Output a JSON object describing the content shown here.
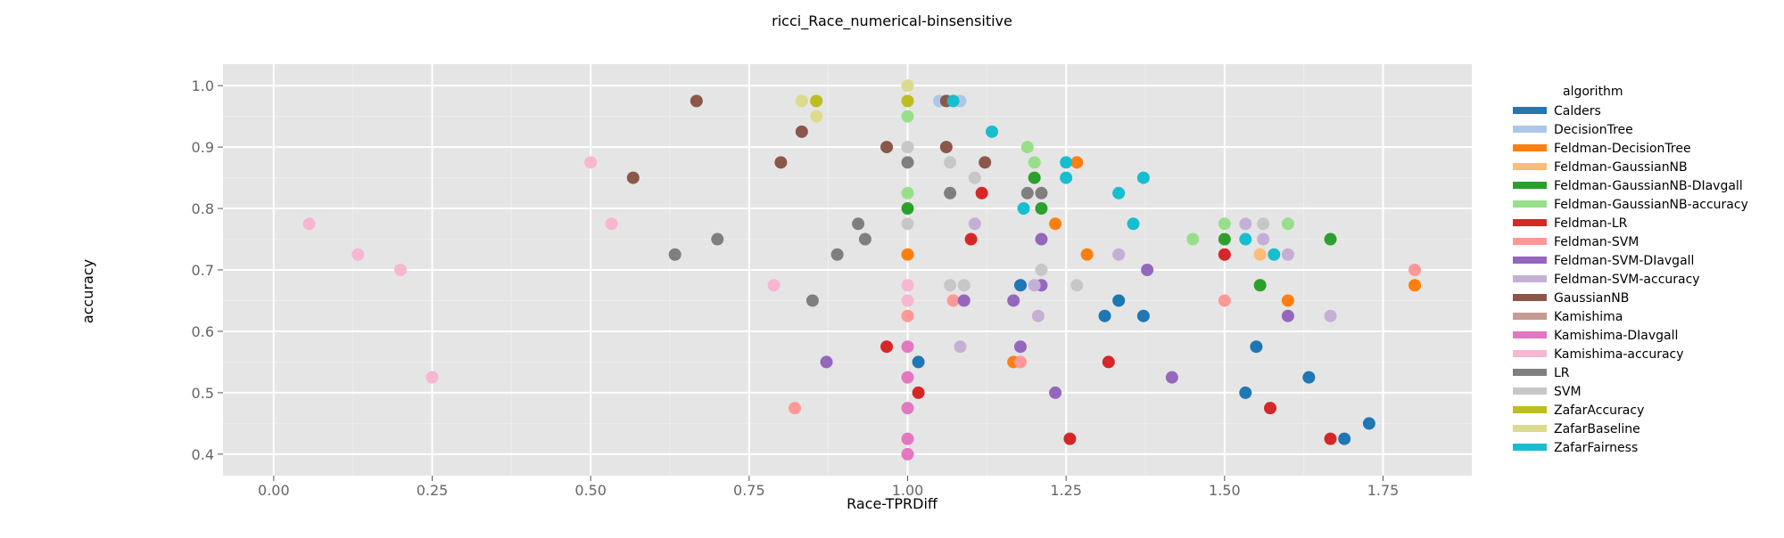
{
  "chart_data": {
    "type": "scatter",
    "title": "ricci_Race_numerical-binsensitive",
    "xlabel": "Race-TPRDiff",
    "ylabel": "accuracy",
    "xlim": [
      -0.08,
      1.89
    ],
    "ylim": [
      0.365,
      1.035
    ],
    "x_ticks": [
      0.0,
      0.25,
      0.5,
      0.75,
      1.0,
      1.25,
      1.5,
      1.75
    ],
    "x_tick_labels": [
      "0.00",
      "0.25",
      "0.50",
      "0.75",
      "1.00",
      "1.25",
      "1.50",
      "1.75"
    ],
    "y_ticks": [
      0.4,
      0.5,
      0.6,
      0.7,
      0.8,
      0.9,
      1.0
    ],
    "y_tick_labels": [
      "0.4",
      "0.5",
      "0.6",
      "0.7",
      "0.8",
      "0.9",
      "1.0"
    ],
    "grid": true,
    "legend_title": "algorithm",
    "legend_position": "right",
    "series": [
      {
        "name": "Calders",
        "color": "#1f77b4",
        "points": [
          [
            1.017,
            0.55
          ],
          [
            1.178,
            0.675
          ],
          [
            1.311,
            0.625
          ],
          [
            1.333,
            0.65
          ],
          [
            1.372,
            0.625
          ],
          [
            1.55,
            0.575
          ],
          [
            1.533,
            0.5
          ],
          [
            1.633,
            0.525
          ],
          [
            1.689,
            0.425
          ],
          [
            1.728,
            0.45
          ]
        ]
      },
      {
        "name": "DecisionTree",
        "color": "#aec7e8",
        "points": [
          [
            1.05,
            0.975
          ],
          [
            1.083,
            0.975
          ]
        ]
      },
      {
        "name": "Feldman-DecisionTree",
        "color": "#ff7f0e",
        "points": [
          [
            1.0,
            0.725
          ],
          [
            1.267,
            0.875
          ],
          [
            1.233,
            0.775
          ],
          [
            1.283,
            0.725
          ],
          [
            1.167,
            0.55
          ],
          [
            1.6,
            0.65
          ],
          [
            1.8,
            0.675
          ]
        ]
      },
      {
        "name": "Feldman-GaussianNB",
        "color": "#ffbb78",
        "points": [
          [
            1.556,
            0.725
          ]
        ]
      },
      {
        "name": "Feldman-GaussianNB-DIavgall",
        "color": "#2ca02c",
        "points": [
          [
            1.0,
            0.8
          ],
          [
            1.2,
            0.85
          ],
          [
            1.211,
            0.8
          ],
          [
            1.5,
            0.75
          ],
          [
            1.556,
            0.675
          ],
          [
            1.667,
            0.75
          ]
        ]
      },
      {
        "name": "Feldman-GaussianNB-accuracy",
        "color": "#98df8a",
        "points": [
          [
            1.0,
            0.95
          ],
          [
            1.0,
            0.825
          ],
          [
            1.189,
            0.9
          ],
          [
            1.2,
            0.875
          ],
          [
            1.45,
            0.75
          ],
          [
            1.5,
            0.775
          ],
          [
            1.6,
            0.775
          ]
        ]
      },
      {
        "name": "Feldman-LR",
        "color": "#d62728",
        "points": [
          [
            0.967,
            0.575
          ],
          [
            1.017,
            0.5
          ],
          [
            1.1,
            0.75
          ],
          [
            1.117,
            0.825
          ],
          [
            1.256,
            0.425
          ],
          [
            1.317,
            0.55
          ],
          [
            1.5,
            0.725
          ],
          [
            1.572,
            0.475
          ],
          [
            1.667,
            0.425
          ]
        ]
      },
      {
        "name": "Feldman-SVM",
        "color": "#ff9896",
        "points": [
          [
            0.822,
            0.475
          ],
          [
            1.0,
            0.625
          ],
          [
            1.072,
            0.65
          ],
          [
            1.178,
            0.55
          ],
          [
            1.5,
            0.65
          ],
          [
            1.8,
            0.7
          ]
        ]
      },
      {
        "name": "Feldman-SVM-DIavgall",
        "color": "#9467bd",
        "points": [
          [
            0.872,
            0.55
          ],
          [
            1.089,
            0.65
          ],
          [
            1.167,
            0.65
          ],
          [
            1.178,
            0.575
          ],
          [
            1.211,
            0.75
          ],
          [
            1.211,
            0.675
          ],
          [
            1.233,
            0.5
          ],
          [
            1.378,
            0.7
          ],
          [
            1.417,
            0.525
          ],
          [
            1.6,
            0.625
          ]
        ]
      },
      {
        "name": "Feldman-SVM-accuracy",
        "color": "#c5b0d5",
        "points": [
          [
            1.083,
            0.575
          ],
          [
            1.106,
            0.775
          ],
          [
            1.2,
            0.675
          ],
          [
            1.206,
            0.625
          ],
          [
            1.333,
            0.725
          ],
          [
            1.533,
            0.775
          ],
          [
            1.561,
            0.75
          ],
          [
            1.6,
            0.725
          ],
          [
            1.667,
            0.625
          ]
        ]
      },
      {
        "name": "GaussianNB",
        "color": "#8c564b",
        "points": [
          [
            0.567,
            0.85
          ],
          [
            0.667,
            0.975
          ],
          [
            0.8,
            0.875
          ],
          [
            0.833,
            0.925
          ],
          [
            0.967,
            0.9
          ],
          [
            1.061,
            0.975
          ],
          [
            1.061,
            0.9
          ],
          [
            1.122,
            0.875
          ]
        ]
      },
      {
        "name": "Kamishima",
        "color": "#c49c94",
        "points": []
      },
      {
        "name": "Kamishima-DIavgall",
        "color": "#e377c2",
        "points": [
          [
            1.0,
            0.575
          ],
          [
            1.0,
            0.525
          ],
          [
            1.0,
            0.475
          ],
          [
            1.0,
            0.425
          ],
          [
            1.0,
            0.4
          ]
        ]
      },
      {
        "name": "Kamishima-accuracy",
        "color": "#f7b6d2",
        "points": [
          [
            0.056,
            0.775
          ],
          [
            0.133,
            0.725
          ],
          [
            0.2,
            0.7
          ],
          [
            0.25,
            0.525
          ],
          [
            0.5,
            0.875
          ],
          [
            0.533,
            0.775
          ],
          [
            0.789,
            0.675
          ],
          [
            1.0,
            0.675
          ],
          [
            1.0,
            0.65
          ]
        ]
      },
      {
        "name": "LR",
        "color": "#7f7f7f",
        "points": [
          [
            0.633,
            0.725
          ],
          [
            0.7,
            0.75
          ],
          [
            0.85,
            0.65
          ],
          [
            0.889,
            0.725
          ],
          [
            0.922,
            0.775
          ],
          [
            0.933,
            0.75
          ],
          [
            1.0,
            0.875
          ],
          [
            1.067,
            0.825
          ],
          [
            1.189,
            0.825
          ],
          [
            1.211,
            0.825
          ]
        ]
      },
      {
        "name": "SVM",
        "color": "#c7c7c7",
        "points": [
          [
            1.0,
            0.9
          ],
          [
            1.0,
            0.775
          ],
          [
            1.067,
            0.875
          ],
          [
            1.067,
            0.675
          ],
          [
            1.089,
            0.675
          ],
          [
            1.106,
            0.85
          ],
          [
            1.211,
            0.7
          ],
          [
            1.267,
            0.675
          ],
          [
            1.561,
            0.775
          ]
        ]
      },
      {
        "name": "ZafarAccuracy",
        "color": "#bcbd22",
        "points": [
          [
            0.856,
            0.975
          ],
          [
            1.0,
            0.975
          ]
        ]
      },
      {
        "name": "ZafarBaseline",
        "color": "#dbdb8d",
        "points": [
          [
            0.833,
            0.975
          ],
          [
            0.856,
            0.95
          ],
          [
            1.0,
            1.0
          ]
        ]
      },
      {
        "name": "ZafarFairness",
        "color": "#17becf",
        "points": [
          [
            1.072,
            0.975
          ],
          [
            1.133,
            0.925
          ],
          [
            1.183,
            0.8
          ],
          [
            1.25,
            0.875
          ],
          [
            1.25,
            0.85
          ],
          [
            1.333,
            0.825
          ],
          [
            1.356,
            0.775
          ],
          [
            1.372,
            0.85
          ],
          [
            1.533,
            0.75
          ],
          [
            1.578,
            0.725
          ]
        ]
      }
    ]
  }
}
